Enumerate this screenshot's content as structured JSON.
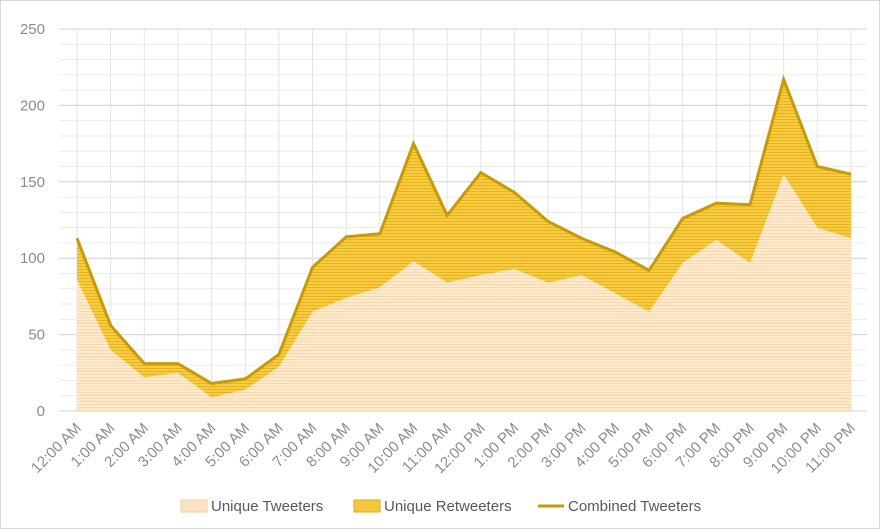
{
  "chart_data": {
    "type": "area",
    "categories": [
      "12:00 AM",
      "1:00 AM",
      "2:00 AM",
      "3:00 AM",
      "4:00 AM",
      "5:00 AM",
      "6:00 AM",
      "7:00 AM",
      "8:00 AM",
      "9:00 AM",
      "10:00 AM",
      "11:00 AM",
      "12:00 PM",
      "1:00 PM",
      "2:00 PM",
      "3:00 PM",
      "4:00 PM",
      "5:00 PM",
      "6:00 PM",
      "7:00 PM",
      "8:00 PM",
      "9:00 PM",
      "10:00 PM",
      "11:00 PM"
    ],
    "series": [
      {
        "name": "Unique Tweeters",
        "kind": "stacked-area",
        "color": "#fbe3c3",
        "values": [
          86,
          40,
          22,
          25,
          9,
          14,
          29,
          65,
          74,
          81,
          98,
          84,
          89,
          93,
          84,
          89,
          77,
          65,
          97,
          112,
          97,
          155,
          120,
          113
        ]
      },
      {
        "name": "Unique Retweeters",
        "kind": "stacked-area",
        "color": "#f5c842",
        "values": [
          27,
          16,
          9,
          6,
          9,
          7,
          8,
          29,
          40,
          35,
          77,
          44,
          67,
          50,
          40,
          24,
          27,
          27,
          29,
          24,
          38,
          62,
          40,
          42
        ]
      },
      {
        "name": "Combined Tweeters",
        "kind": "line",
        "color": "#c79a06",
        "values": [
          113,
          56,
          31,
          31,
          18,
          21,
          37,
          94,
          114,
          116,
          175,
          128,
          156,
          143,
          124,
          113,
          104,
          92,
          126,
          136,
          135,
          217,
          160,
          155
        ]
      }
    ],
    "y_ticks": [
      "0",
      "50",
      "100",
      "150",
      "200",
      "250"
    ],
    "ylim": [
      0,
      250
    ],
    "grid": true,
    "legend_position": "bottom",
    "title": "",
    "xlabel": "",
    "ylabel": ""
  }
}
